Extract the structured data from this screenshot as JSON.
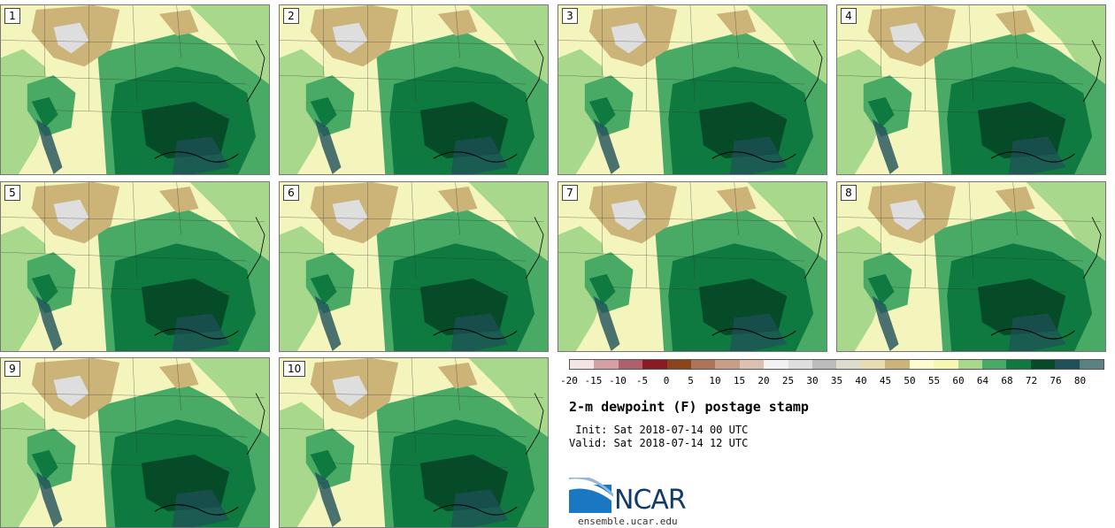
{
  "panels": [
    "1",
    "2",
    "3",
    "4",
    "5",
    "6",
    "7",
    "8",
    "9",
    "10"
  ],
  "colorbar": {
    "colors": [
      "#f4e4e4",
      "#d4a0a4",
      "#b0606a",
      "#8a1a24",
      "#8c4418",
      "#ae7458",
      "#c89e86",
      "#dcc0b0",
      "#f2f2f2",
      "#dedede",
      "#bcbcbc",
      "#dedccc",
      "#e8dcb0",
      "#ccb478",
      "#fcfcd0",
      "#f4f8b0",
      "#a8d88c",
      "#48aa64",
      "#0e7a40",
      "#064b28",
      "#20505a",
      "#5a8282"
    ],
    "ticks": [
      "-20",
      "-15",
      "-10",
      "-5",
      "0",
      "5",
      "10",
      "15",
      "20",
      "25",
      "30",
      "35",
      "40",
      "45",
      "50",
      "55",
      "60",
      "64",
      "68",
      "72",
      "76",
      "80"
    ]
  },
  "title": "2-m dewpoint (F) postage stamp",
  "init": " Init: Sat 2018-07-14 00 UTC",
  "valid": "Valid: Sat 2018-07-14 12 UTC",
  "logo": "NCAR",
  "site": "ensemble.ucar.edu"
}
